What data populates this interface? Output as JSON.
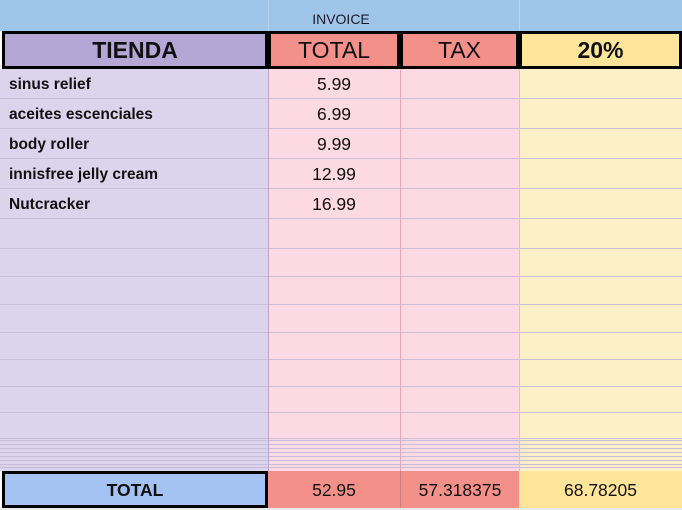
{
  "sheet": {
    "title": "INVOICE",
    "headers": {
      "tienda": "TIENDA",
      "total": "TOTAL",
      "tax": "TAX",
      "percent": "20%"
    },
    "rows": [
      {
        "name": "sinus relief",
        "total": "5.99"
      },
      {
        "name": "aceites escenciales",
        "total": "6.99"
      },
      {
        "name": "body roller",
        "total": "9.99"
      },
      {
        "name": "innisfree jelly cream",
        "total": "12.99"
      },
      {
        "name": "Nutcracker",
        "total": "16.99"
      }
    ],
    "totals": {
      "label": "TOTAL",
      "total": "52.95",
      "tax": "57.318375",
      "percent": "68.78205"
    }
  },
  "colors": {
    "title_band": "#9fc5e8",
    "tienda_header": "#b4a7d6",
    "tienda_column": "#dcd3ec",
    "total_tax_header": "#f4908a",
    "total_tax_column": "#fcd9e3",
    "percent_header": "#ffe599",
    "percent_column": "#fdefc7",
    "total_label": "#a4c2f4"
  }
}
